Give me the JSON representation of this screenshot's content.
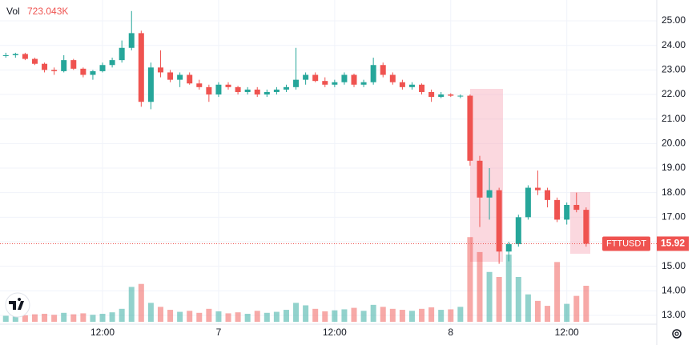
{
  "chart_data": {
    "type": "candlestick",
    "symbol": "FTTUSDT",
    "last_price": {
      "value": 15.92,
      "label": "15.92"
    },
    "volume_title": "Vol",
    "volume_readout": "723.043K",
    "up_color": "#26a69a",
    "down_color": "#ef5350",
    "grid": true,
    "x": [
      2,
      3,
      4,
      5,
      6,
      7,
      8,
      9,
      10,
      11,
      12,
      13,
      14,
      15,
      16,
      17,
      18,
      19,
      20,
      21,
      22,
      23,
      24,
      25,
      26,
      27,
      28,
      29,
      30,
      31,
      32,
      33,
      34,
      35,
      36,
      37,
      38,
      39,
      40,
      41,
      42,
      43,
      44,
      45,
      46,
      47,
      48,
      49,
      50,
      51,
      52,
      53,
      54,
      55,
      56,
      57,
      58,
      59,
      60,
      61,
      62
    ],
    "open": [
      23.6,
      23.6,
      23.65,
      23.45,
      23.25,
      23.0,
      22.95,
      23.4,
      23.05,
      22.8,
      22.95,
      23.2,
      23.4,
      23.9,
      24.5,
      21.7,
      23.1,
      22.9,
      22.6,
      22.8,
      22.45,
      22.3,
      22.0,
      22.4,
      22.3,
      22.1,
      22.2,
      22.0,
      22.1,
      22.2,
      22.3,
      22.6,
      22.8,
      22.55,
      22.4,
      22.5,
      22.8,
      22.4,
      22.5,
      23.2,
      22.8,
      22.5,
      22.3,
      22.4,
      22.1,
      21.9,
      22.0,
      21.95,
      21.95,
      19.3,
      17.8,
      18.1,
      15.6,
      15.9,
      17.0,
      18.2,
      18.1,
      17.7,
      16.9,
      17.5,
      17.3
    ],
    "high": [
      23.7,
      23.7,
      23.7,
      23.5,
      23.3,
      23.1,
      23.6,
      23.45,
      23.1,
      23.0,
      23.3,
      23.5,
      24.2,
      25.4,
      24.6,
      23.3,
      23.8,
      23.0,
      22.9,
      22.9,
      22.6,
      22.4,
      22.5,
      22.5,
      22.35,
      22.3,
      22.3,
      22.2,
      22.3,
      22.4,
      23.9,
      22.9,
      22.9,
      22.7,
      22.6,
      22.9,
      22.85,
      22.6,
      23.5,
      23.3,
      22.9,
      22.6,
      22.5,
      22.45,
      22.2,
      22.1,
      22.05,
      22.0,
      22.0,
      19.5,
      19.0,
      18.2,
      16.0,
      17.1,
      18.3,
      18.9,
      18.2,
      17.8,
      17.6,
      18.0,
      17.4
    ],
    "low": [
      23.5,
      23.5,
      23.4,
      23.2,
      22.9,
      22.8,
      22.9,
      23.0,
      22.7,
      22.6,
      22.9,
      23.1,
      23.3,
      23.8,
      21.5,
      21.4,
      22.7,
      22.5,
      22.3,
      22.4,
      22.2,
      21.7,
      21.9,
      22.2,
      22.0,
      22.0,
      21.9,
      21.9,
      22.0,
      22.1,
      22.2,
      22.4,
      22.5,
      22.3,
      22.3,
      22.4,
      22.3,
      22.3,
      22.4,
      22.7,
      22.4,
      22.2,
      22.2,
      22.0,
      21.7,
      21.85,
      21.9,
      21.85,
      19.1,
      16.6,
      16.9,
      15.1,
      15.2,
      15.8,
      16.9,
      17.9,
      17.4,
      16.8,
      16.7,
      17.2,
      15.8
    ],
    "close": [
      23.6,
      23.65,
      23.45,
      23.25,
      23.0,
      22.95,
      23.4,
      23.05,
      22.8,
      22.95,
      23.2,
      23.4,
      23.9,
      24.5,
      21.7,
      23.1,
      22.9,
      22.6,
      22.8,
      22.45,
      22.3,
      22.0,
      22.4,
      22.3,
      22.1,
      22.2,
      22.0,
      22.1,
      22.2,
      22.3,
      22.6,
      22.8,
      22.55,
      22.4,
      22.5,
      22.8,
      22.4,
      22.5,
      23.2,
      22.8,
      22.5,
      22.3,
      22.4,
      22.1,
      21.9,
      22.0,
      21.95,
      21.95,
      19.3,
      17.8,
      18.1,
      15.6,
      15.9,
      17.0,
      18.2,
      18.1,
      17.7,
      16.9,
      17.5,
      17.3,
      15.92
    ],
    "volume": [
      120,
      110,
      130,
      150,
      160,
      140,
      180,
      150,
      170,
      140,
      160,
      190,
      260,
      700,
      760,
      380,
      300,
      240,
      200,
      220,
      180,
      260,
      210,
      170,
      190,
      160,
      220,
      180,
      200,
      240,
      380,
      330,
      260,
      210,
      230,
      250,
      280,
      220,
      340,
      300,
      260,
      240,
      220,
      260,
      290,
      240,
      250,
      300,
      1700,
      1400,
      1000,
      900,
      1350,
      900,
      550,
      420,
      320,
      1200,
      360,
      520,
      723.043
    ],
    "vol_lim": [
      0,
      1800
    ],
    "xlim": [
      1.4,
      69.3
    ],
    "xticks": [
      {
        "value": 12,
        "label": "12:00"
      },
      {
        "value": 24,
        "label": "7"
      },
      {
        "value": 36,
        "label": "12:00"
      },
      {
        "value": 48,
        "label": "8"
      },
      {
        "value": 60,
        "label": "12:00"
      }
    ],
    "ylim": [
      12.64,
      25.85
    ],
    "yticks": [
      {
        "value": 13,
        "label": "13.00"
      },
      {
        "value": 14,
        "label": "14.00"
      },
      {
        "value": 15,
        "label": "15.00"
      },
      {
        "value": 16,
        "label": "16.00"
      },
      {
        "value": 17,
        "label": "17.00"
      },
      {
        "value": 18,
        "label": "18.00"
      },
      {
        "value": 19,
        "label": "19.00"
      },
      {
        "value": 20,
        "label": "20.00"
      },
      {
        "value": 21,
        "label": "21.00"
      },
      {
        "value": 22,
        "label": "22.00"
      },
      {
        "value": 23,
        "label": "23.00"
      },
      {
        "value": 24,
        "label": "24.00"
      },
      {
        "value": 25,
        "label": "25.00"
      }
    ]
  }
}
